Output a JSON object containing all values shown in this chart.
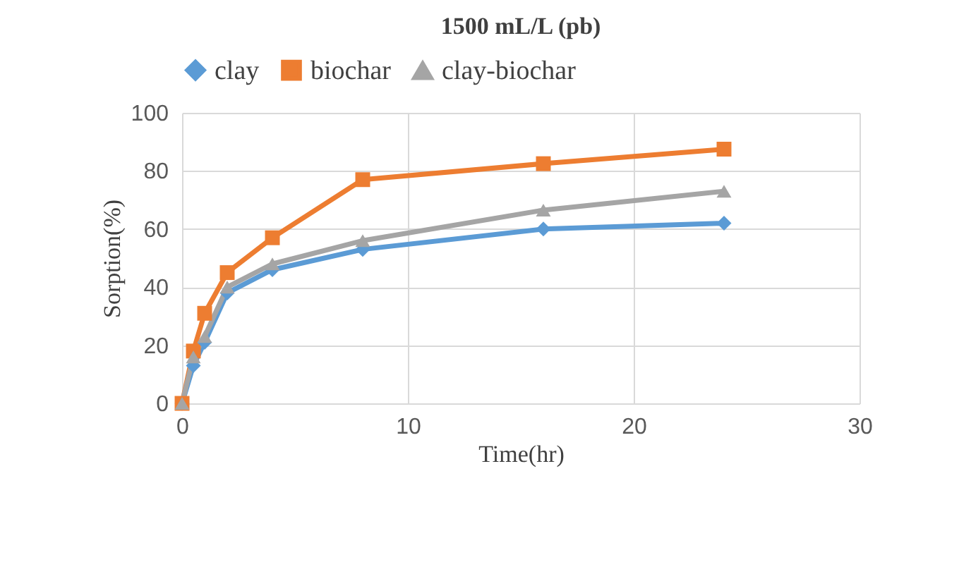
{
  "chart_data": {
    "type": "line",
    "title": "1500 mL/L (pb)",
    "xlabel": "Time(hr)",
    "ylabel": "Sorption(%)",
    "x": [
      0,
      0.5,
      1,
      2,
      4,
      8,
      16,
      24
    ],
    "series": [
      {
        "name": "clay",
        "color": "#5b9bd5",
        "marker": "diamond",
        "values": [
          0,
          13,
          21,
          38,
          46,
          53,
          60,
          62
        ]
      },
      {
        "name": "biochar",
        "color": "#ed7d31",
        "marker": "square",
        "values": [
          0,
          18,
          31,
          45,
          57,
          77,
          82.5,
          87.5
        ]
      },
      {
        "name": "clay-biochar",
        "color": "#a5a5a5",
        "marker": "triangle",
        "values": [
          0,
          16,
          23,
          40,
          48,
          56,
          66.5,
          73
        ]
      }
    ],
    "xlim": [
      0,
      30
    ],
    "xticks": [
      0,
      10,
      20,
      30
    ],
    "ylim": [
      0,
      100
    ],
    "yticks": [
      0,
      20,
      40,
      60,
      80,
      100
    ],
    "grid": true,
    "legend": "top",
    "line_style": "solid"
  }
}
